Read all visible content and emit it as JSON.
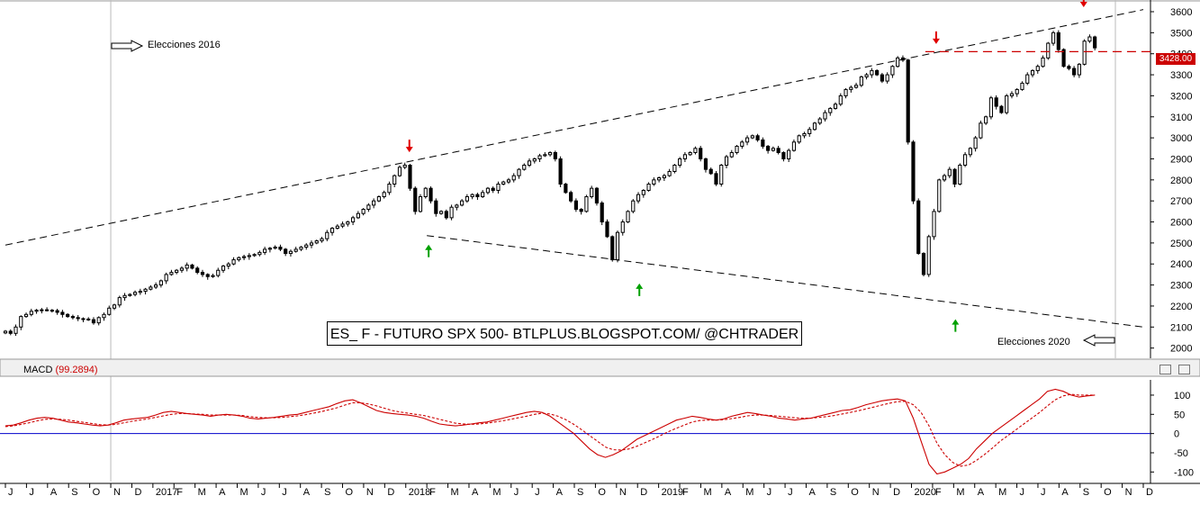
{
  "watermark": "ES_ F - FUTURO SPX 500- BTLPLUS.BLOGSPOT.COM/ @CHTRADER",
  "annotations": {
    "elecciones_2016": "Elecciones 2016",
    "elecciones_2020": "Elecciones 2020"
  },
  "current_price_label": "3428.00",
  "macd": {
    "name": "MACD",
    "value": "(99.2894)"
  },
  "colors": {
    "candle_body": "#000000",
    "trendline": "#000000",
    "support_line": "#cc0000",
    "macd_line": "#cc0000",
    "macd_zero_line": "#0000cc",
    "down_arrow": "#e00000",
    "up_arrow": "#00a000"
  },
  "chart_data": [
    {
      "type": "candlestick",
      "title": "",
      "y_ticks": [
        2000,
        2100,
        2200,
        2300,
        2400,
        2500,
        2600,
        2700,
        2800,
        2900,
        3000,
        3100,
        3200,
        3300,
        3400,
        3500,
        3600
      ],
      "ylim": [
        1960,
        3630
      ],
      "x_tick_labels": [
        "J",
        "J",
        "A",
        "S",
        "O",
        "N",
        "D",
        "2017",
        "F",
        "M",
        "A",
        "M",
        "J",
        "J",
        "A",
        "S",
        "O",
        "N",
        "D",
        "2018",
        "F",
        "M",
        "A",
        "M",
        "J",
        "J",
        "A",
        "S",
        "O",
        "N",
        "D",
        "2019",
        "F",
        "M",
        "A",
        "M",
        "J",
        "J",
        "A",
        "S",
        "O",
        "N",
        "D",
        "2020",
        "F",
        "M",
        "A",
        "M",
        "J",
        "J",
        "A",
        "S",
        "O",
        "N",
        "D"
      ],
      "x_range": [
        "2016-06",
        "2020-12"
      ],
      "grid": false,
      "series_close_weekly": [
        2080,
        2070,
        2100,
        2150,
        2160,
        2175,
        2180,
        2182,
        2180,
        2178,
        2170,
        2160,
        2150,
        2145,
        2140,
        2138,
        2135,
        2120,
        2145,
        2160,
        2190,
        2205,
        2240,
        2250,
        2255,
        2265,
        2270,
        2280,
        2290,
        2300,
        2320,
        2350,
        2360,
        2370,
        2380,
        2395,
        2380,
        2360,
        2350,
        2340,
        2345,
        2370,
        2390,
        2400,
        2420,
        2430,
        2435,
        2440,
        2445,
        2455,
        2470,
        2475,
        2480,
        2470,
        2450,
        2460,
        2470,
        2480,
        2490,
        2500,
        2510,
        2520,
        2550,
        2570,
        2580,
        2590,
        2600,
        2620,
        2640,
        2660,
        2680,
        2700,
        2720,
        2740,
        2780,
        2820,
        2860,
        2870,
        2760,
        2650,
        2720,
        2760,
        2700,
        2640,
        2650,
        2620,
        2670,
        2680,
        2700,
        2720,
        2730,
        2720,
        2740,
        2760,
        2750,
        2780,
        2790,
        2800,
        2820,
        2850,
        2870,
        2890,
        2900,
        2915,
        2920,
        2930,
        2900,
        2780,
        2740,
        2700,
        2660,
        2650,
        2720,
        2760,
        2690,
        2600,
        2530,
        2420,
        2550,
        2600,
        2650,
        2700,
        2730,
        2750,
        2780,
        2800,
        2810,
        2820,
        2840,
        2870,
        2900,
        2920,
        2930,
        2950,
        2900,
        2850,
        2830,
        2780,
        2870,
        2910,
        2930,
        2960,
        2980,
        3000,
        3010,
        2990,
        2960,
        2940,
        2950,
        2930,
        2900,
        2940,
        2980,
        3010,
        3020,
        3040,
        3070,
        3090,
        3120,
        3140,
        3160,
        3200,
        3230,
        3240,
        3250,
        3290,
        3300,
        3320,
        3300,
        3270,
        3300,
        3340,
        3380,
        3370,
        2980,
        2700,
        2450,
        2350,
        2530,
        2650,
        2800,
        2820,
        2850,
        2780,
        2870,
        2920,
        2950,
        3000,
        3070,
        3100,
        3190,
        3150,
        3120,
        3200,
        3210,
        3230,
        3260,
        3300,
        3320,
        3340,
        3380,
        3450,
        3500,
        3420,
        3340,
        3330,
        3300,
        3350,
        3460,
        3480,
        3428
      ],
      "trendline_upper": {
        "points": [
          [
            "2016-06",
            2490
          ],
          [
            "2020-12",
            3610
          ]
        ]
      },
      "trendline_lower": {
        "points": [
          [
            "2018-02",
            2535
          ],
          [
            "2020-12",
            2100
          ]
        ]
      },
      "support_level": 3410,
      "current_price": 3428.0,
      "markers_down": [
        [
          "2018-01",
          2880
        ],
        [
          "2020-02",
          3395
        ],
        [
          "2020-09",
          3570
        ]
      ],
      "markers_up": [
        [
          "2018-02",
          2535
        ],
        [
          "2018-12",
          2350
        ],
        [
          "2020-03",
          2180
        ]
      ]
    },
    {
      "type": "line",
      "title": "",
      "y_ticks": [
        -100,
        -50,
        0,
        50,
        100
      ],
      "ylim": [
        -125,
        135
      ],
      "series": [
        {
          "name": "MACD",
          "style": "solid",
          "values": [
            20,
            22,
            28,
            35,
            40,
            42,
            40,
            35,
            30,
            28,
            25,
            22,
            20,
            22,
            28,
            35,
            38,
            40,
            42,
            48,
            55,
            58,
            55,
            52,
            50,
            48,
            45,
            48,
            50,
            48,
            45,
            40,
            38,
            40,
            42,
            45,
            48,
            50,
            55,
            60,
            65,
            70,
            78,
            85,
            88,
            80,
            70,
            60,
            55,
            52,
            50,
            48,
            45,
            40,
            32,
            25,
            22,
            20,
            22,
            25,
            28,
            30,
            35,
            40,
            45,
            50,
            55,
            58,
            55,
            45,
            30,
            15,
            0,
            -20,
            -40,
            -55,
            -62,
            -55,
            -45,
            -30,
            -15,
            -5,
            5,
            15,
            25,
            35,
            40,
            45,
            42,
            38,
            35,
            38,
            45,
            50,
            55,
            52,
            48,
            45,
            40,
            38,
            35,
            38,
            40,
            45,
            50,
            55,
            60,
            62,
            68,
            75,
            80,
            85,
            88,
            90,
            85,
            40,
            -20,
            -80,
            -105,
            -100,
            -90,
            -80,
            -65,
            -40,
            -20,
            0,
            15,
            30,
            45,
            60,
            75,
            90,
            110,
            115,
            110,
            100,
            95,
            98,
            100
          ]
        },
        {
          "name": "Signal",
          "style": "dashed",
          "values": [
            18,
            20,
            24,
            28,
            33,
            37,
            38,
            37,
            35,
            32,
            29,
            26,
            23,
            22,
            24,
            28,
            32,
            35,
            38,
            42,
            46,
            50,
            52,
            52,
            51,
            50,
            48,
            48,
            48,
            48,
            47,
            44,
            42,
            41,
            41,
            42,
            44,
            46,
            49,
            53,
            57,
            62,
            67,
            74,
            80,
            80,
            77,
            72,
            66,
            60,
            56,
            53,
            50,
            47,
            42,
            37,
            32,
            27,
            25,
            24,
            25,
            27,
            30,
            33,
            37,
            41,
            45,
            50,
            53,
            51,
            45,
            36,
            24,
            10,
            -5,
            -20,
            -35,
            -42,
            -43,
            -40,
            -33,
            -24,
            -15,
            -5,
            5,
            14,
            22,
            30,
            34,
            35,
            35,
            36,
            39,
            42,
            46,
            48,
            48,
            47,
            45,
            43,
            41,
            40,
            40,
            42,
            44,
            47,
            51,
            55,
            59,
            64,
            69,
            74,
            79,
            83,
            84,
            75,
            55,
            20,
            -25,
            -55,
            -75,
            -85,
            -82,
            -70,
            -55,
            -38,
            -20,
            -5,
            10,
            25,
            40,
            55,
            72,
            88,
            98,
            102,
            100,
            100,
            100
          ]
        }
      ]
    }
  ]
}
